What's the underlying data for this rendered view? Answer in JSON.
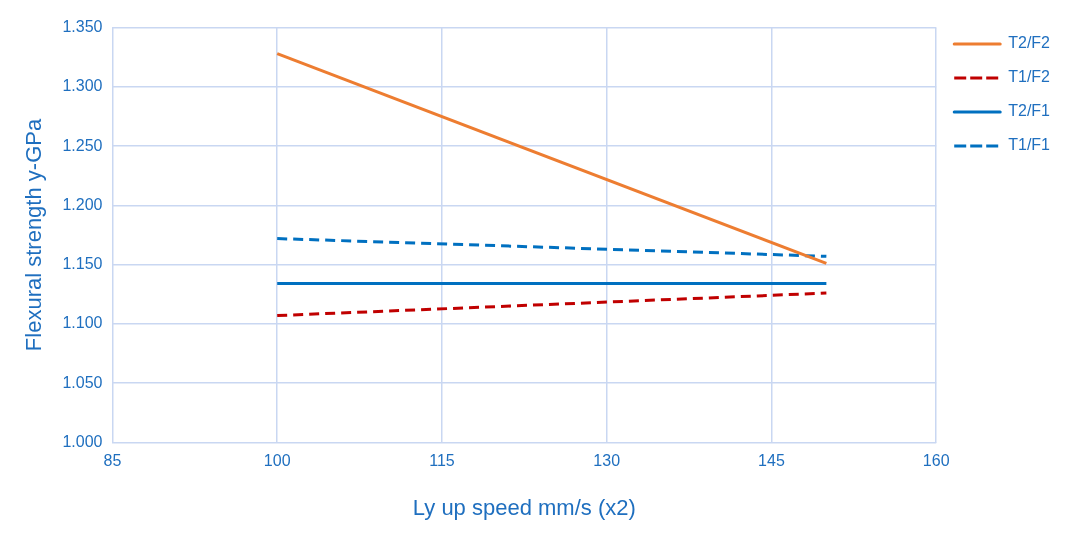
{
  "chart_data": {
    "type": "line",
    "xlabel": "Ly up speed mm/s (x2)",
    "ylabel": "Flexural strength y-GPa",
    "x": [
      100,
      150
    ],
    "series": [
      {
        "name": "T2/F2",
        "color": "#ed7d31",
        "values": [
          1.328,
          1.151
        ],
        "line_style": "solid"
      },
      {
        "name": "T1/F2",
        "color": "#c00000",
        "values": [
          1.107,
          1.126
        ],
        "line_style": "dashed"
      },
      {
        "name": "T2/F1",
        "color": "#0070c0",
        "values": [
          1.134,
          1.134
        ],
        "line_style": "solid"
      },
      {
        "name": "T1/F1",
        "color": "#0070c0",
        "values": [
          1.172,
          1.157
        ],
        "line_style": "dashed"
      }
    ],
    "xlim": [
      85,
      160
    ],
    "xticks": [
      85,
      100,
      115,
      130,
      145,
      160
    ],
    "ylim": [
      1,
      1.35
    ],
    "yticks": [
      {
        "value": 1,
        "label": "1.000"
      },
      {
        "value": 1.05,
        "label": "1.050"
      },
      {
        "value": 1.1,
        "label": "1.100"
      },
      {
        "value": 1.15,
        "label": "1.150"
      },
      {
        "value": 1.2,
        "label": "1.200"
      },
      {
        "value": 1.25,
        "label": "1.250"
      },
      {
        "value": 1.3,
        "label": "1.300"
      },
      {
        "value": 1.35,
        "label": "1.350"
      }
    ],
    "grid": true,
    "legend": "right",
    "marker": "none"
  }
}
